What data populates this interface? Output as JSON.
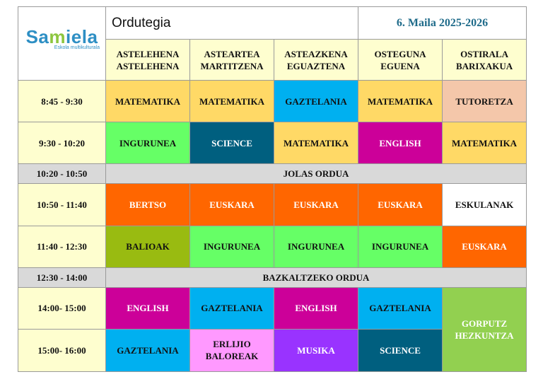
{
  "header": {
    "logo_main_pre": "Sa",
    "logo_main_accent": "m",
    "logo_main_post": "iela",
    "logo_sub": "Eskola multikulturala",
    "title": "Ordutegia",
    "year": "6.  Maila 2025-2026"
  },
  "days": [
    {
      "line1": "ASTELEHENA",
      "line2": "ASTELEHENA"
    },
    {
      "line1": "ASTEARTEA",
      "line2": "MARTITZENA"
    },
    {
      "line1": "ASTEAZKENA",
      "line2": "EGUAZTENA"
    },
    {
      "line1": "OSTEGUNA",
      "line2": "EGUENA"
    },
    {
      "line1": "OSTIRALA",
      "line2": "BARIXAKUA"
    }
  ],
  "times": {
    "t1": "8:45 - 9:30",
    "t2": "9:30 - 10:20",
    "b1": "10:20 - 10:50",
    "t3": "10:50 - 11:40",
    "t4": "11:40 - 12:30",
    "b2": "12:30 - 14:00",
    "t5": "14:00- 15:00",
    "t6": "15:00- 16:00"
  },
  "breaks": {
    "b1": "JOLAS ORDUA",
    "b2": "BAZKALTZEKO ORDUA"
  },
  "rows": {
    "r1": [
      "MATEMATIKA",
      "MATEMATIKA",
      "GAZTELANIA",
      "MATEMATIKA",
      "TUTORETZA"
    ],
    "r2": [
      "INGURUNEA",
      "SCIENCE",
      "MATEMATIKA",
      "ENGLISH",
      "MATEMATIKA"
    ],
    "r3": [
      "BERTSO",
      "EUSKARA",
      "EUSKARA",
      "EUSKARA",
      "ESKULANAK"
    ],
    "r4": [
      "BALIOAK",
      "INGURUNEA",
      "INGURUNEA",
      "INGURUNEA",
      "EUSKARA"
    ],
    "r5": [
      "ENGLISH",
      "GAZTELANIA",
      "ENGLISH",
      "GAZTELANIA"
    ],
    "r6": [
      "GAZTELANIA",
      "ERLIJIO",
      "MUSIKA",
      "SCIENCE"
    ],
    "r6_c2_line2": "BALOREAK",
    "friday_pm_line1": "GORPUTZ",
    "friday_pm_line2": "HEZKUNTZA"
  },
  "colors": {
    "matematika": "#ffd966",
    "gaztelania": "#00b0f0",
    "tutoretza": "#f4c7aa",
    "ingurunea": "#66ff66",
    "science": "#005f7f",
    "english": "#cc0099",
    "bertso": "#ff6600",
    "euskara": "#ff6600",
    "eskulanak": "#ffffff",
    "balioak": "#99bb11",
    "gorputz_hezkuntza": "#92d050",
    "erlijio_baloreak": "#ff99ff",
    "musika": "#9933ff",
    "day_header": "#fefecf",
    "break": "#d9d9d9"
  }
}
